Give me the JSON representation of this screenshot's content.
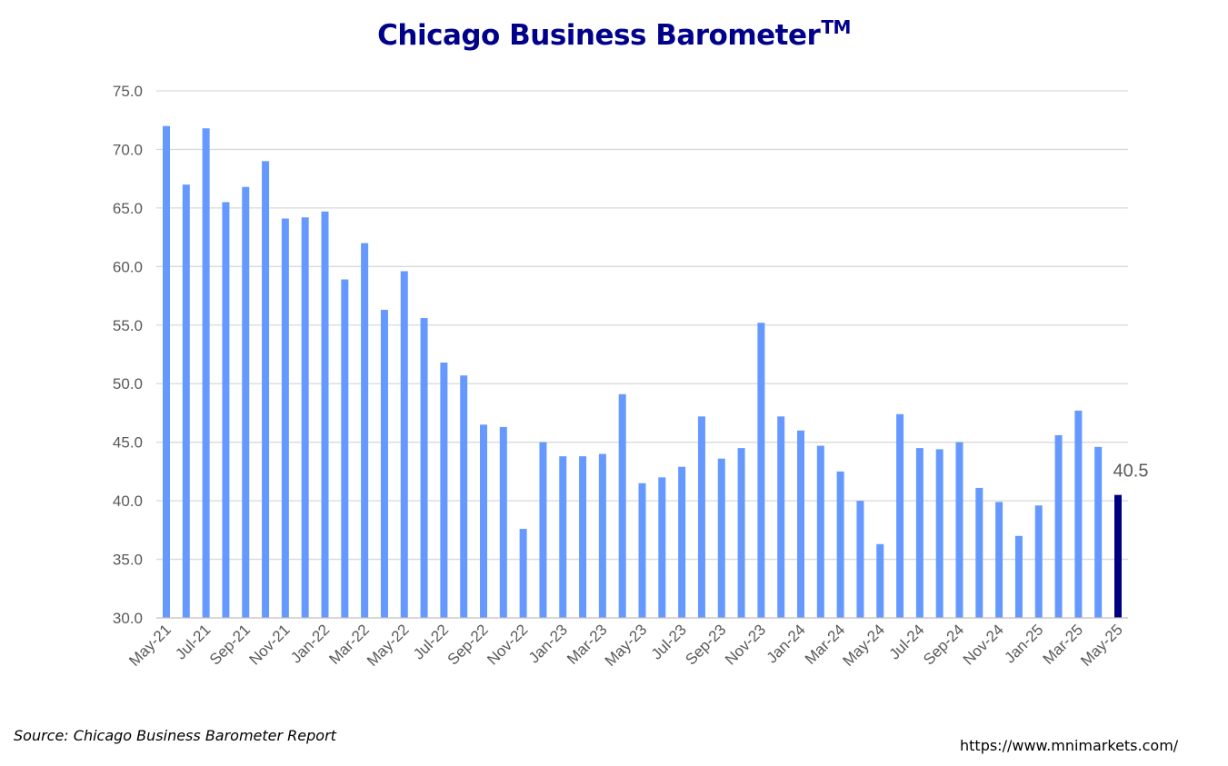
{
  "title": "Chicago Business Barometer",
  "title_mark": "TM",
  "source": "Source: Chicago Business Barometer Report",
  "url": "https://www.mnimarkets.com/",
  "chart_data": {
    "type": "bar",
    "title": "Chicago Business Barometer™",
    "xlabel": "",
    "ylabel": "",
    "ylim": [
      30.0,
      75.0
    ],
    "y_ticks": [
      "30.0",
      "35.0",
      "40.0",
      "45.0",
      "50.0",
      "55.0",
      "60.0",
      "65.0",
      "70.0",
      "75.0"
    ],
    "grid": true,
    "legend": "none",
    "categories": [
      "May-21",
      "Jun-21",
      "Jul-21",
      "Aug-21",
      "Sep-21",
      "Oct-21",
      "Nov-21",
      "Dec-21",
      "Jan-22",
      "Feb-22",
      "Mar-22",
      "Apr-22",
      "May-22",
      "Jun-22",
      "Jul-22",
      "Aug-22",
      "Sep-22",
      "Oct-22",
      "Nov-22",
      "Dec-22",
      "Jan-23",
      "Feb-23",
      "Mar-23",
      "Apr-23",
      "May-23",
      "Jun-23",
      "Jul-23",
      "Aug-23",
      "Sep-23",
      "Oct-23",
      "Nov-23",
      "Dec-23",
      "Jan-24",
      "Feb-24",
      "Mar-24",
      "Apr-24",
      "May-24",
      "Jun-24",
      "Jul-24",
      "Aug-24",
      "Sep-24",
      "Oct-24",
      "Nov-24",
      "Dec-24",
      "Jan-25",
      "Feb-25",
      "Mar-25",
      "Apr-25",
      "May-25"
    ],
    "x_tick_labels": [
      "May-21",
      "Jul-21",
      "Sep-21",
      "Nov-21",
      "Jan-22",
      "Mar-22",
      "May-22",
      "Jul-22",
      "Sep-22",
      "Nov-22",
      "Jan-23",
      "Mar-23",
      "May-23",
      "Jul-23",
      "Sep-23",
      "Nov-23",
      "Jan-24",
      "Mar-24",
      "May-24",
      "Jul-24",
      "Sep-24",
      "Nov-24",
      "Jan-25",
      "Mar-25",
      "May-25"
    ],
    "values": [
      72.0,
      67.0,
      71.8,
      65.5,
      66.8,
      69.0,
      64.1,
      64.2,
      64.7,
      58.9,
      62.0,
      56.3,
      59.6,
      55.6,
      51.8,
      50.7,
      46.5,
      46.3,
      37.6,
      45.0,
      43.8,
      43.8,
      44.0,
      49.1,
      41.5,
      42.0,
      42.9,
      47.2,
      43.6,
      44.5,
      55.2,
      47.2,
      46.0,
      44.7,
      42.5,
      40.0,
      36.3,
      47.4,
      44.5,
      44.4,
      45.0,
      41.1,
      39.9,
      37.0,
      39.6,
      45.6,
      47.7,
      44.6,
      40.5
    ],
    "highlight": {
      "category": "May-25",
      "label": "40.5"
    },
    "colors": {
      "bar": "#6699ff",
      "highlight": "#000080",
      "grid": "#d9d9d9",
      "axis": "#595959",
      "title": "#00008b"
    }
  }
}
